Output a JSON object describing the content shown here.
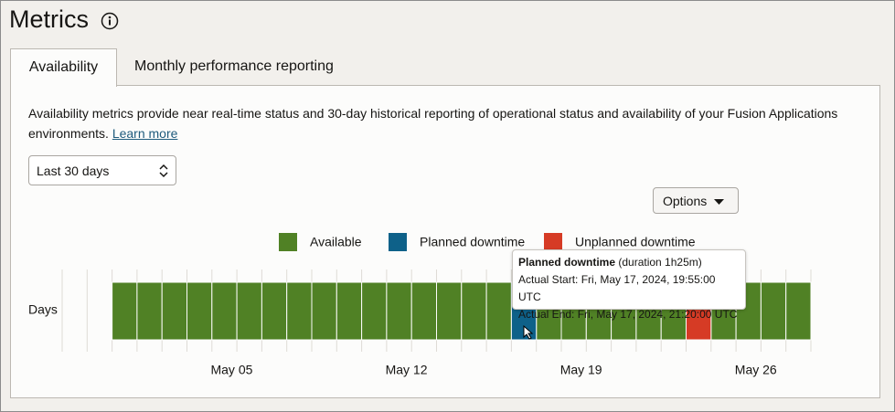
{
  "page": {
    "title": "Metrics",
    "tabs": [
      "Availability",
      "Monthly performance reporting"
    ],
    "description": "Availability metrics provide near real-time status and 30-day historical reporting of operational status and availability of your Fusion Applications environments.",
    "link": "Learn more",
    "select": "Last 30 days",
    "options_button": "Options"
  },
  "chart_data": {
    "type": "status",
    "y_label": "Days",
    "categories": [
      null,
      null,
      null,
      null,
      null,
      null,
      "May 05",
      null,
      null,
      null,
      null,
      null,
      null,
      "May 12",
      null,
      null,
      null,
      null,
      null,
      null,
      "May 19",
      null,
      null,
      null,
      null,
      null,
      null,
      "May 26",
      null,
      null
    ],
    "ylim": [
      0,
      1
    ],
    "series": [
      {
        "name": "Available",
        "color": "#508125",
        "values": [
          null,
          null,
          1,
          1,
          1,
          1,
          1,
          1,
          1,
          1,
          1,
          1,
          1,
          1,
          1,
          1,
          1,
          1,
          null,
          1,
          1,
          1,
          1,
          1,
          1,
          null,
          1,
          1,
          1,
          1
        ]
      },
      {
        "name": "Planned downtime",
        "color": "#0e6189",
        "values": [
          null,
          null,
          null,
          null,
          null,
          null,
          null,
          null,
          null,
          null,
          null,
          null,
          null,
          null,
          null,
          null,
          null,
          null,
          1,
          null,
          null,
          null,
          null,
          null,
          null,
          null,
          null,
          null,
          null,
          null
        ]
      },
      {
        "name": "Unplanned downtime",
        "color": "#d63b25",
        "values": [
          null,
          null,
          null,
          null,
          null,
          null,
          null,
          null,
          null,
          null,
          null,
          null,
          null,
          null,
          null,
          null,
          null,
          null,
          null,
          null,
          null,
          null,
          null,
          null,
          null,
          1,
          null,
          null,
          null,
          null
        ]
      }
    ],
    "tooltip": {
      "title": "Planned downtime",
      "duration": "(duration 1h25m)",
      "start": "Actual Start: Fri, May 17, 2024, 19:55:00 UTC",
      "end": "Actual End: Fri, May 17, 2024, 21:20:00 UTC"
    }
  }
}
